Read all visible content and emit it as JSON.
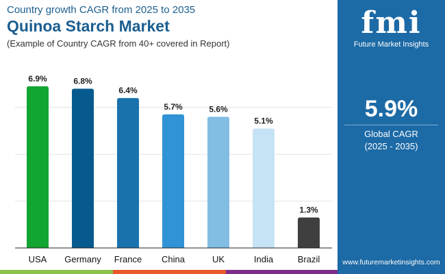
{
  "header": {
    "subtitle_top": "Country growth CAGR from 2025 to 2035",
    "title": "Quinoa Starch Market",
    "note": "(Example of Country CAGR from 40+ covered in Report)"
  },
  "side_panel": {
    "logo_text": "fmi",
    "logo_caption": "Future Market Insights",
    "global_value": "5.9%",
    "global_label": "Global CAGR",
    "global_period": "(2025 - 2035)",
    "url": "www.futuremarketinsights.com",
    "background": "#1c6aa6"
  },
  "chart_data": {
    "type": "bar",
    "title": "Quinoa Starch Market",
    "categories": [
      "USA",
      "Germany",
      "France",
      "China",
      "UK",
      "India",
      "Brazil"
    ],
    "values": [
      6.9,
      6.8,
      6.4,
      5.7,
      5.6,
      5.1,
      1.3
    ],
    "data_labels": [
      "6.9%",
      "6.8%",
      "6.4%",
      "5.7%",
      "5.6%",
      "5.1%",
      "1.3%"
    ],
    "colors": [
      "#12a532",
      "#065a8e",
      "#1a72ad",
      "#2f93d5",
      "#82bde4",
      "#c6e2f5",
      "#3f3f3f"
    ],
    "ylim": [
      0,
      7
    ],
    "grid": true,
    "gridlines": [
      2,
      4,
      6
    ],
    "xlabel": "",
    "ylabel": ""
  }
}
